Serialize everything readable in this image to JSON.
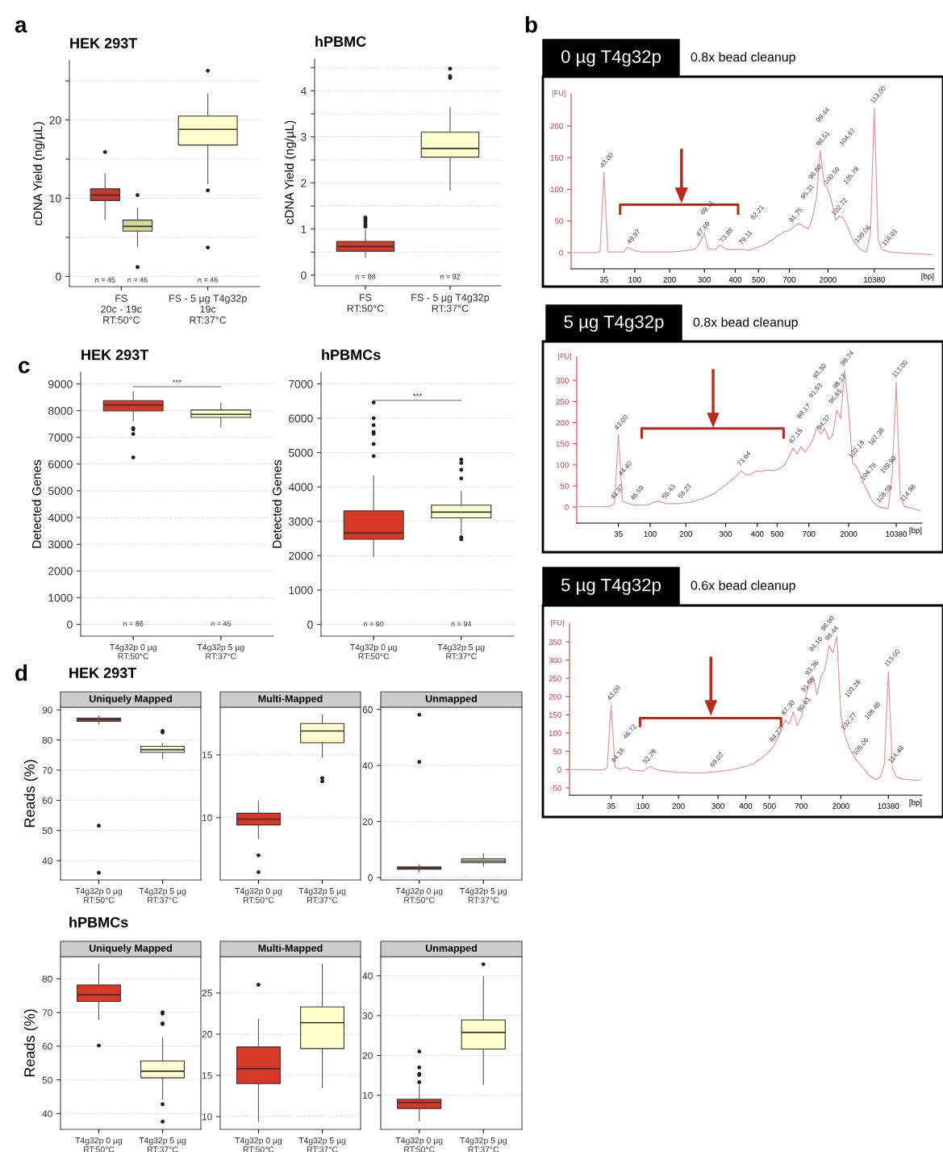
{
  "chart_data": [
    {
      "type": "box",
      "title": "HEK 293T",
      "ylabel": "cDNA Yield (ng/µL)",
      "categories": [
        "FS\n20c - 19c\nRT:50°C",
        "FS - 5 µg T4g32p\n19c\nRT:37°C"
      ],
      "series": [
        {
          "color": "#c8372c",
          "boxes": [
            {
              "low": 7.3,
              "q1": 9.7,
              "median": 10.4,
              "q3": 11.2,
              "high": 13.1,
              "outliers": [
                15.9
              ]
            },
            null
          ]
        },
        {
          "color": "#d6d69a",
          "boxes": [
            {
              "low": 3.85,
              "q1": 5.8,
              "median": 6.4,
              "q3": 7.2,
              "high": 8.7,
              "outliers": [
                10.4,
                1.2
              ]
            },
            null
          ]
        },
        {
          "color": "#ffffcc",
          "boxes": [
            null,
            {
              "low": 11.9,
              "q1": 16.8,
              "median": 18.8,
              "q3": 20.5,
              "high": 23.3,
              "outliers": [
                26.3,
                11.0,
                3.7
              ]
            }
          ]
        }
      ],
      "ylim": [
        -1.3,
        27.6
      ],
      "yticks": [
        0,
        {
          "value": 5,
          "label": null
        },
        10,
        {
          "value": 15,
          "label": null
        },
        20,
        {
          "value": 25,
          "label": null
        }
      ],
      "grid": "y",
      "annotations": [
        "a",
        "n = 45",
        "n = 46",
        "n = 46"
      ]
    },
    {
      "type": "box",
      "title": "hPBMC",
      "ylabel": "cDNA Yield (ng/µL)",
      "categories": [
        "FS\nRT:50°C",
        "FS - 5 µg T4g32p\nRT:37°C"
      ],
      "series": [
        {
          "color": "#d63a26",
          "boxes": [
            {
              "low": 0.39,
              "q1": 0.52,
              "median": 0.62,
              "q3": 0.73,
              "high": 0.98,
              "outliers": [
                1.05,
                1.08,
                1.12,
                1.17,
                1.22,
                1.25
              ]
            },
            null
          ]
        },
        {
          "color": "#ffffcc",
          "boxes": [
            null,
            {
              "low": 1.84,
              "q1": 2.56,
              "median": 2.75,
              "q3": 3.1,
              "high": 3.64,
              "outliers": [
                4.28,
                4.32,
                4.48
              ]
            }
          ]
        }
      ],
      "ylim": [
        -0.23,
        4.69
      ],
      "yticks": [
        0,
        {
          "value": 0.5,
          "label": null
        },
        1,
        {
          "value": 1.5,
          "label": null
        },
        2,
        {
          "value": 2.5,
          "label": null
        },
        3,
        {
          "value": 3.5,
          "label": null
        },
        4,
        {
          "value": 4.5,
          "label": null
        }
      ],
      "grid": "y",
      "annotations": [
        "n = 88",
        "n = 92"
      ]
    },
    {
      "type": "line",
      "title": "0 µg T4g32p",
      "subtitle": "0.8x bead cleanup",
      "xlabel": "[bp]",
      "ylabel": "[FU]",
      "categories": [
        null,
        null,
        null,
        null,
        null,
        null,
        null,
        null,
        "35",
        null,
        null,
        null,
        null,
        null,
        null,
        null,
        "100",
        null,
        null,
        null,
        null,
        null,
        null,
        null,
        null,
        "200",
        null,
        null,
        null,
        null,
        null,
        null,
        null,
        null,
        "300",
        null,
        null,
        null,
        null,
        null,
        null,
        null,
        "400",
        null,
        null,
        null,
        null,
        null,
        "500",
        null,
        null,
        null,
        null,
        null,
        null,
        null,
        "700",
        null,
        null,
        null,
        null,
        null,
        null,
        null,
        null,
        null,
        "2000",
        null,
        null,
        null,
        null,
        null,
        null,
        null,
        null,
        null,
        null,
        null,
        "10380",
        null,
        null,
        null,
        null,
        null,
        null,
        null,
        null,
        null,
        null,
        null,
        null,
        null,
        null,
        null
      ],
      "series": [
        {
          "color": "#e39a9a",
          "values": [
            0,
            0,
            0,
            0,
            0,
            0,
            0,
            2,
            127,
            1,
            1,
            1,
            1,
            1,
            8,
            6,
            3,
            2,
            1,
            1,
            1,
            1,
            1,
            1,
            1,
            1,
            1,
            2,
            2,
            3,
            4,
            5,
            8,
            18,
            31,
            6,
            5,
            6,
            12,
            8,
            5,
            5,
            5,
            5,
            5,
            4,
            4,
            7,
            9,
            11,
            14,
            18,
            22,
            27,
            30,
            34,
            35,
            40,
            45,
            45,
            40,
            38,
            55,
            85,
            161,
            110,
            100,
            80,
            51,
            58,
            55,
            42,
            27,
            16,
            8,
            3,
            1,
            30,
            228,
            20,
            5,
            3,
            1,
            0,
            0,
            0,
            -1,
            -1,
            -1,
            -2,
            -2,
            -2,
            -3,
            -3
          ]
        }
      ],
      "ylim": [
        -25.5,
        251
      ],
      "yticks": [
        0,
        50,
        100,
        150,
        200
      ],
      "annotations": [
        "b",
        "43.00",
        "113.00",
        "49.97",
        "67.69",
        "69.11",
        "73.88",
        "79.11",
        "82.21",
        "91.75",
        "95.31",
        "96.80",
        "98.51",
        "99.44",
        "100.59",
        "102.72",
        "104.67",
        "105.78",
        "109.06",
        "116.01"
      ]
    },
    {
      "type": "line",
      "title": "5 µg T4g32p",
      "subtitle": "0.8x bead cleanup",
      "xlabel": "[bp]",
      "ylabel": "[FU]",
      "categories": [
        null,
        null,
        null,
        null,
        null,
        null,
        null,
        null,
        null,
        null,
        "35",
        null,
        null,
        null,
        null,
        null,
        null,
        null,
        "100",
        null,
        null,
        null,
        null,
        null,
        null,
        null,
        null,
        "200",
        null,
        null,
        null,
        null,
        null,
        null,
        null,
        null,
        null,
        "300",
        null,
        null,
        null,
        null,
        null,
        null,
        null,
        "400",
        null,
        null,
        null,
        null,
        "500",
        null,
        null,
        null,
        null,
        null,
        null,
        null,
        "700",
        null,
        null,
        null,
        null,
        null,
        null,
        null,
        null,
        null,
        "2000",
        null,
        null,
        null,
        null,
        null,
        null,
        null,
        null,
        null,
        null,
        null,
        "10380",
        null,
        null,
        null,
        null,
        null,
        null
      ],
      "series": [
        {
          "color": "#e39a9a",
          "values": [
            1,
            1,
            1,
            1,
            1,
            1,
            1,
            1,
            3,
            8,
            172,
            15,
            10,
            7,
            5,
            5,
            5,
            5,
            7,
            12,
            14,
            11,
            8,
            8,
            8,
            8,
            9,
            10,
            11,
            14,
            17,
            19,
            23,
            27,
            31,
            38,
            45,
            52,
            60,
            68,
            76,
            86,
            77,
            76,
            82,
            86,
            84,
            87,
            88,
            86,
            89,
            93,
            102,
            120,
            140,
            126,
            143,
            130,
            143,
            160,
            190,
            172,
            187,
            160,
            170,
            229,
            210,
            324,
            230,
            105,
            95,
            75,
            52,
            32,
            15,
            4,
            0,
            -3,
            -3,
            80,
            296,
            30,
            2,
            -1,
            -3,
            -6,
            -8
          ]
        }
      ],
      "ylim": [
        -38,
        356
      ],
      "yticks": [
        0,
        50,
        100,
        150,
        200,
        250,
        300
      ],
      "annotations": [
        "43.00",
        "113.00",
        "41.97",
        "44.40",
        "46.59",
        "55.43",
        "59.23",
        "73.64",
        "87.15",
        "89.17",
        "91.53",
        "93.30",
        "94.37",
        "96.65",
        "98.17",
        "99.74",
        "102.18",
        "104.78",
        "107.38",
        "108.58",
        "109.90",
        "114.98"
      ]
    },
    {
      "type": "line",
      "title": "5 µg T4g32p",
      "subtitle": "0.6x bead cleanup",
      "xlabel": "[bp]",
      "ylabel": "[FU]",
      "categories": [
        null,
        null,
        null,
        null,
        null,
        null,
        null,
        null,
        null,
        null,
        "35",
        null,
        null,
        null,
        null,
        null,
        null,
        null,
        "100",
        null,
        null,
        null,
        null,
        null,
        null,
        null,
        null,
        "200",
        null,
        null,
        null,
        null,
        null,
        null,
        null,
        null,
        null,
        "300",
        null,
        null,
        null,
        null,
        null,
        null,
        "400",
        null,
        null,
        null,
        null,
        null,
        "500",
        null,
        null,
        null,
        null,
        null,
        null,
        null,
        "700",
        null,
        null,
        null,
        null,
        null,
        null,
        null,
        null,
        null,
        "2000",
        null,
        null,
        null,
        null,
        null,
        null,
        null,
        null,
        null,
        null,
        null,
        "10380",
        null,
        null,
        null,
        null,
        null,
        null,
        null,
        null
      ],
      "series": [
        {
          "color": "#e39a9a",
          "values": [
            0,
            0,
            0,
            0,
            0,
            0,
            -1,
            -1,
            0,
            4,
            177,
            6,
            2,
            3,
            6,
            -1,
            -2,
            -3,
            -4,
            3,
            9,
            2,
            -1,
            -3,
            -4,
            -5,
            -7,
            -7,
            -8,
            -8,
            -9,
            -9,
            -9,
            -9,
            -8,
            -7,
            -6,
            -5,
            -4,
            -3,
            -1,
            1,
            3,
            6,
            9,
            13,
            16,
            24,
            31,
            40,
            51,
            63,
            85,
            111,
            136,
            125,
            158,
            120,
            145,
            190,
            245,
            255,
            205,
            255,
            275,
            340,
            320,
            365,
            150,
            95,
            65,
            42,
            26,
            12,
            0,
            -14,
            -22,
            -27,
            -20,
            15,
            269,
            5,
            -20,
            -24,
            -26,
            -27,
            -28,
            -29,
            -29
          ]
        }
      ],
      "ylim": [
        -70,
        401
      ],
      "yticks": [
        -50,
        0,
        50,
        100,
        150,
        200,
        250,
        300,
        350
      ],
      "annotations": [
        "43.00",
        "113.00",
        "44.18",
        "46.72",
        "52.29",
        "69.02",
        "84.27",
        "87.30",
        "90.61",
        "91.58",
        "93.36",
        "94.16",
        "96.90",
        "98.44",
        "102.27",
        "103.28",
        "105.06",
        "108.48",
        "114.48"
      ]
    },
    {
      "type": "box",
      "title": "HEK 293T",
      "ylabel": "Detected Genes",
      "categories": [
        "T4g32p 0 µg\nRT:50°C",
        "T4g32p 5 µg\nRT:37°C"
      ],
      "series": [
        {
          "color": "#d63a26",
          "boxes": [
            {
              "low": 7625,
              "q1": 7990,
              "median": 8212,
              "q3": 8375,
              "high": 8712,
              "outliers": [
                7350,
                7300,
                7125,
                6250
              ]
            },
            null
          ]
        },
        {
          "color": "#ffffcc",
          "boxes": [
            null,
            {
              "low": 7387,
              "q1": 7750,
              "median": 7862,
              "q3": 8025,
              "high": 8275
            }
          ]
        }
      ],
      "ylim": [
        -440,
        9440
      ],
      "yticks": [
        0,
        1000,
        2000,
        3000,
        4000,
        5000,
        6000,
        7000,
        8000,
        9000
      ],
      "grid": "y",
      "annotations": [
        "c",
        "***",
        "n = 86",
        "n = 45"
      ]
    },
    {
      "type": "box",
      "title": "hPBMCs",
      "ylabel": "Detected Genes",
      "categories": [
        "T4g32p 0 µg\nRT:50°C",
        "T4g32p 5 µg\nRT:37°C"
      ],
      "series": [
        {
          "color": "#d63a26",
          "boxes": [
            {
              "low": 1974,
              "q1": 2479,
              "median": 2664,
              "q3": 3305,
              "high": 4326,
              "outliers": [
                4900,
                5250,
                5550,
                5600,
                5800,
                6000,
                6460
              ]
            },
            null
          ]
        },
        {
          "color": "#ffffcc",
          "boxes": [
            null,
            {
              "low": 2635,
              "q1": 3101,
              "median": 3267,
              "q3": 3471,
              "high": 3869,
              "outliers": [
                2480,
                2540,
                4250,
                4500,
                4700,
                4800
              ]
            }
          ]
        }
      ],
      "ylim": [
        -340,
        7340
      ],
      "yticks": [
        0,
        1000,
        2000,
        3000,
        4000,
        5000,
        6000,
        7000
      ],
      "grid": "y",
      "annotations": [
        "***",
        "n = 90",
        "n = 94"
      ]
    },
    {
      "type": "box",
      "title": "HEK 293T",
      "subtitle": "Uniquely Mapped",
      "ylabel": "Reads (%)",
      "categories": [
        "T4g32p 0 µg\nRT:50°C",
        "T4g32p 5 µg\nRT:37°C"
      ],
      "series": [
        {
          "color": "#d63a26",
          "boxes": [
            {
              "low": 85.3,
              "q1": 86.2,
              "median": 86.8,
              "q3": 87.3,
              "high": 88.1,
              "outliers": [
                51.6,
                36.0
              ]
            },
            null
          ]
        },
        {
          "color": "#ffffcc",
          "boxes": [
            null,
            {
              "low": 73.9,
              "q1": 75.9,
              "median": 76.8,
              "q3": 77.9,
              "high": 78.9,
              "outliers": [
                83.0,
                82.5
              ]
            }
          ]
        }
      ],
      "ylim": [
        33.6,
        90.9
      ],
      "yticks": [
        40,
        50,
        60,
        70,
        80,
        90
      ],
      "grid": "y",
      "annotations": [
        "d"
      ]
    },
    {
      "type": "box",
      "subtitle": "Multi-Mapped",
      "categories": [
        "T4g32p 0 µg\nRT:50°C",
        "T4g32p 5 µg\nRT:37°C"
      ],
      "series": [
        {
          "color": "#d63a26",
          "boxes": [
            {
              "low": 8.33,
              "q1": 9.41,
              "median": 9.87,
              "q3": 10.35,
              "high": 11.34,
              "outliers": [
                7.0,
                5.65
              ]
            },
            null
          ]
        },
        {
          "color": "#ffffcc",
          "boxes": [
            null,
            {
              "low": 14.8,
              "q1": 15.97,
              "median": 16.9,
              "q3": 17.5,
              "high": 18.2,
              "outliers": [
                13.15,
                12.9
              ]
            }
          ]
        }
      ],
      "ylim": [
        5.03,
        18.8
      ],
      "yticks": [
        10,
        15
      ],
      "grid": "y"
    },
    {
      "type": "box",
      "subtitle": "Unmapped",
      "categories": [
        "T4g32p 0 µg\nRT:50°C",
        "T4g32p 5 µg\nRT:37°C"
      ],
      "series": [
        {
          "color": "#d63a26",
          "boxes": [
            {
              "low": 1.9,
              "q1": 3.0,
              "median": 3.37,
              "q3": 3.85,
              "high": 4.45,
              "outliers": [
                58.1,
                41.3
              ]
            },
            null
          ]
        },
        {
          "color": "#ffffcc",
          "boxes": [
            null,
            {
              "low": 4.1,
              "q1": 5.3,
              "median": 5.9,
              "q3": 6.7,
              "high": 8.5
            }
          ]
        }
      ],
      "ylim": [
        -0.84,
        60.8
      ],
      "yticks": [
        0,
        20,
        40,
        60
      ],
      "grid": "y"
    },
    {
      "type": "box",
      "title": "hPBMCs",
      "subtitle": "Uniquely Mapped",
      "ylabel": "Reads (%)",
      "categories": [
        "T4g32p 0 µg\nRT:50°C",
        "T4g32p 5 µg\nRT:37°C"
      ],
      "series": [
        {
          "color": "#d63a26",
          "boxes": [
            {
              "low": 68.0,
              "q1": 73.3,
              "median": 75.3,
              "q3": 78.2,
              "high": 84.3,
              "outliers": [
                60.2
              ]
            },
            null
          ]
        },
        {
          "color": "#ffffcc",
          "boxes": [
            null,
            {
              "low": 44.3,
              "q1": 50.6,
              "median": 52.6,
              "q3": 55.6,
              "high": 62.6,
              "outliers": [
                70.1,
                69.7,
                66.8,
                66.6,
                42.8,
                37.6
              ]
            }
          ]
        }
      ],
      "ylim": [
        35.3,
        86.6
      ],
      "yticks": [
        40,
        50,
        60,
        70,
        80
      ],
      "grid": "y"
    },
    {
      "type": "box",
      "subtitle": "Multi-Mapped",
      "categories": [
        "T4g32p 0 µg\nRT:50°C",
        "T4g32p 5 µg\nRT:37°C"
      ],
      "series": [
        {
          "color": "#d63a26",
          "boxes": [
            {
              "low": 9.4,
              "q1": 14.0,
              "median": 15.8,
              "q3": 18.45,
              "high": 21.8,
              "outliers": [
                26.0
              ]
            },
            null
          ]
        },
        {
          "color": "#ffffcc",
          "boxes": [
            null,
            {
              "low": 13.5,
              "q1": 18.25,
              "median": 21.4,
              "q3": 23.3,
              "high": 28.5
            }
          ]
        }
      ],
      "ylim": [
        8.45,
        29.4
      ],
      "yticks": [
        10,
        15,
        20,
        25
      ],
      "grid": "y"
    },
    {
      "type": "box",
      "subtitle": "Unmapped",
      "categories": [
        "T4g32p 0 µg\nRT:50°C",
        "T4g32p 5 µg\nRT:37°C"
      ],
      "series": [
        {
          "color": "#d63a26",
          "boxes": [
            {
              "low": 3.6,
              "q1": 6.7,
              "median": 8.2,
              "q3": 9.0,
              "high": 12.5,
              "outliers": [
                13.3,
                15.1,
                15.4,
                17.0,
                21.0
              ]
            },
            null
          ]
        },
        {
          "color": "#ffffcc",
          "boxes": [
            null,
            {
              "low": 12.7,
              "q1": 21.6,
              "median": 25.8,
              "q3": 28.9,
              "high": 39.7,
              "outliers": [
                42.9
              ]
            }
          ]
        }
      ],
      "ylim": [
        1.45,
        44.8
      ],
      "yticks": [
        10,
        20,
        30,
        40
      ],
      "grid": "y"
    }
  ]
}
